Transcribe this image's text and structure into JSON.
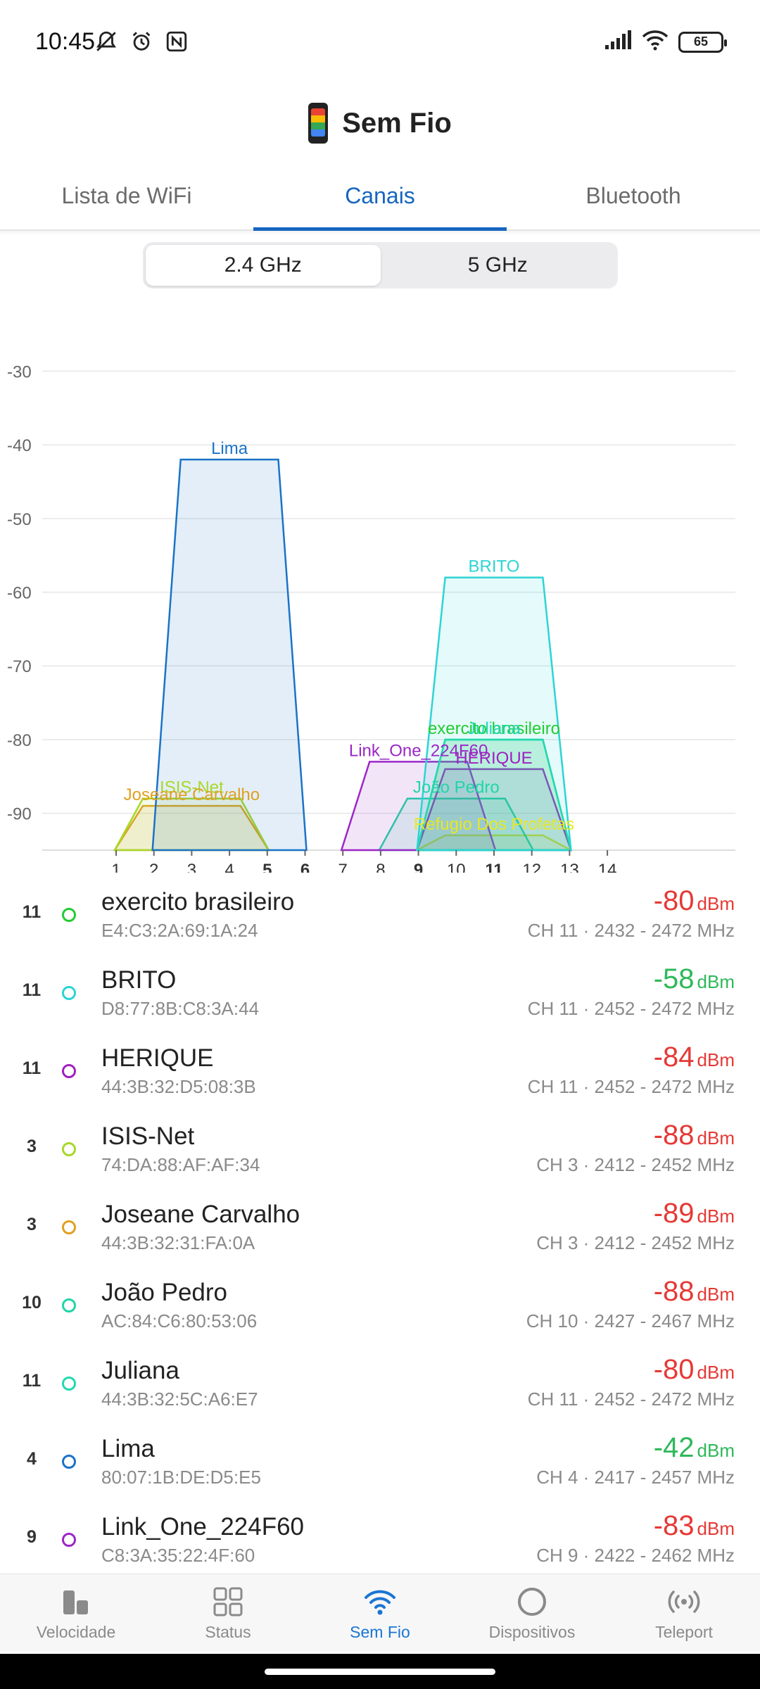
{
  "status_bar": {
    "time": "10:45",
    "battery": "65",
    "icons_left": [
      "mute-icon",
      "alarm-icon",
      "nfc-icon"
    ],
    "icons_right": [
      "signal-icon",
      "wifi-icon",
      "battery-icon"
    ]
  },
  "header": {
    "title": "Sem Fio"
  },
  "tabs": [
    {
      "label": "Lista de WiFi",
      "active": false
    },
    {
      "label": "Canais",
      "active": true
    },
    {
      "label": "Bluetooth",
      "active": false
    }
  ],
  "band": {
    "options": [
      "2.4 GHz",
      "5 GHz"
    ],
    "selected": "2.4 GHz"
  },
  "chart_data": {
    "type": "area",
    "x_axis": {
      "ticks": [
        "1",
        "2",
        "3",
        "4",
        "5",
        "6",
        "7",
        "8",
        "9",
        "10",
        "11",
        "12",
        "13",
        "14"
      ],
      "bold_ticks": [
        "5",
        "6",
        "9",
        "11"
      ],
      "range": [
        0,
        15.5
      ]
    },
    "y_axis": {
      "ticks": [
        -30,
        -40,
        -50,
        -60,
        -70,
        -80,
        -90
      ],
      "range": [
        -95,
        -27
      ],
      "unit": "dBm"
    },
    "grid": true,
    "series": [
      {
        "name": "Lima",
        "channel": 4,
        "from": 2,
        "to": 6,
        "signal": -42,
        "color": "#1a73c8"
      },
      {
        "name": "BRITO",
        "channel": 11,
        "from": 9,
        "to": 13,
        "signal": -58,
        "color": "#2dd4d4"
      },
      {
        "name": "exercito brasileiro",
        "channel": 11,
        "from": 9,
        "to": 13,
        "signal": -80,
        "color": "#22cc33"
      },
      {
        "name": "Juliana",
        "channel": 11,
        "from": 9,
        "to": 13,
        "signal": -80,
        "color": "#22d9b0"
      },
      {
        "name": "Link_One_224F60",
        "channel": 9,
        "from": 7,
        "to": 11,
        "signal": -83,
        "color": "#9b27c7"
      },
      {
        "name": "HERIQUE",
        "channel": 11,
        "from": 9,
        "to": 13,
        "signal": -84,
        "color": "#a020c0"
      },
      {
        "name": "ISIS-Net",
        "channel": 3,
        "from": 1,
        "to": 5,
        "signal": -88,
        "color": "#a8d82a"
      },
      {
        "name": "João Pedro",
        "channel": 10,
        "from": 8,
        "to": 12,
        "signal": -88,
        "color": "#1fd6a8"
      },
      {
        "name": "Joseane Carvalho",
        "channel": 3,
        "from": 1,
        "to": 5,
        "signal": -89,
        "color": "#e0a020"
      },
      {
        "name": "Refugio Dos Profetas",
        "channel": 11,
        "from": 9,
        "to": 13,
        "signal": -93,
        "color": "#e8e820"
      }
    ]
  },
  "networks": [
    {
      "channel": "11",
      "name": "exercito brasileiro",
      "mac": "E4:C3:2A:69:1A:24",
      "signal": "-80",
      "unit": "dBm",
      "info": "CH 11 · 2432 - 2472 MHz",
      "dot_color": "#22cc33",
      "signal_color": "#e53935"
    },
    {
      "channel": "11",
      "name": "BRITO",
      "mac": "D8:77:8B:C8:3A:44",
      "signal": "-58",
      "unit": "dBm",
      "info": "CH 11 · 2452 - 2472 MHz",
      "dot_color": "#2dd4d4",
      "signal_color": "#2fb85a"
    },
    {
      "channel": "11",
      "name": "HERIQUE",
      "mac": "44:3B:32:D5:08:3B",
      "signal": "-84",
      "unit": "dBm",
      "info": "CH 11 · 2452 - 2472 MHz",
      "dot_color": "#a020c0",
      "signal_color": "#e53935"
    },
    {
      "channel": "3",
      "name": "ISIS-Net",
      "mac": "74:DA:88:AF:AF:34",
      "signal": "-88",
      "unit": "dBm",
      "info": "CH 3 · 2412 - 2452 MHz",
      "dot_color": "#a8d82a",
      "signal_color": "#e53935"
    },
    {
      "channel": "3",
      "name": "Joseane Carvalho",
      "mac": "44:3B:32:31:FA:0A",
      "signal": "-89",
      "unit": "dBm",
      "info": "CH 3 · 2412 - 2452 MHz",
      "dot_color": "#e0a020",
      "signal_color": "#e53935"
    },
    {
      "channel": "10",
      "name": "João Pedro",
      "mac": "AC:84:C6:80:53:06",
      "signal": "-88",
      "unit": "dBm",
      "info": "CH 10 · 2427 - 2467 MHz",
      "dot_color": "#1fd6a8",
      "signal_color": "#e53935"
    },
    {
      "channel": "11",
      "name": "Juliana",
      "mac": "44:3B:32:5C:A6:E7",
      "signal": "-80",
      "unit": "dBm",
      "info": "CH 11 · 2452 - 2472 MHz",
      "dot_color": "#22d9b0",
      "signal_color": "#e53935"
    },
    {
      "channel": "4",
      "name": "Lima",
      "mac": "80:07:1B:DE:D5:E5",
      "signal": "-42",
      "unit": "dBm",
      "info": "CH 4 · 2417 - 2457 MHz",
      "dot_color": "#1a73c8",
      "signal_color": "#2fb85a"
    },
    {
      "channel": "9",
      "name": "Link_One_224F60",
      "mac": "C8:3A:35:22:4F:60",
      "signal": "-83",
      "unit": "dBm",
      "info": "CH 9 · 2422 - 2462 MHz",
      "dot_color": "#9b27c7",
      "signal_color": "#e53935"
    }
  ],
  "bottom_nav": [
    {
      "label": "Velocidade",
      "icon": "speed-chart-icon",
      "active": false
    },
    {
      "label": "Status",
      "icon": "grid-icon",
      "active": false
    },
    {
      "label": "Sem Fio",
      "icon": "wifi-icon",
      "active": true
    },
    {
      "label": "Dispositivos",
      "icon": "devices-ring-icon",
      "active": false
    },
    {
      "label": "Teleport",
      "icon": "teleport-icon",
      "active": false
    }
  ]
}
